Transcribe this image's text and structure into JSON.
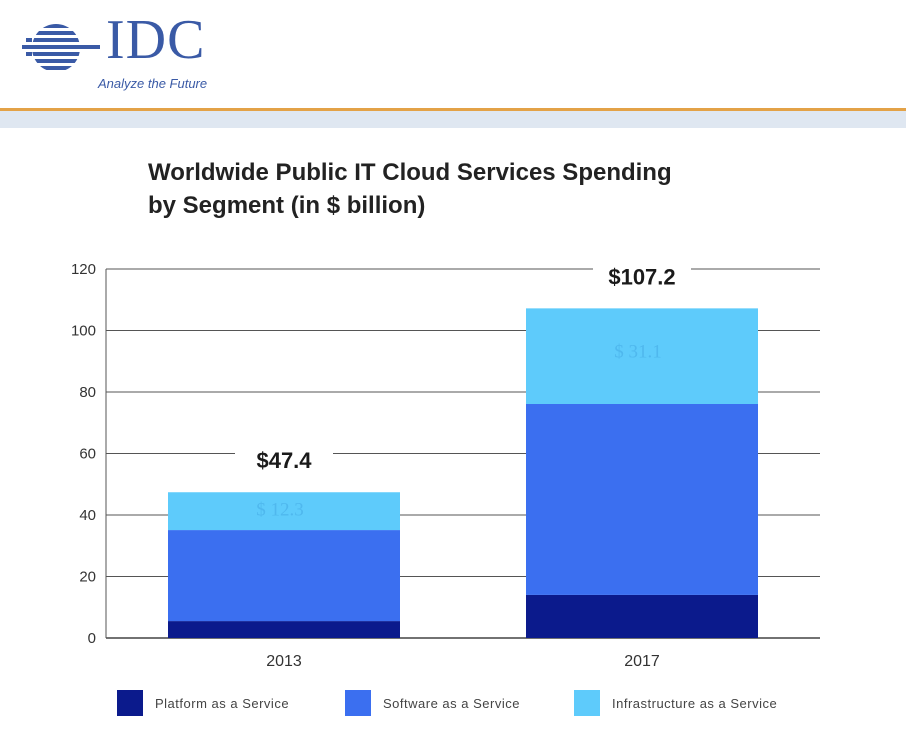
{
  "header": {
    "logo_text": "IDC",
    "tagline": "Analyze the Future",
    "colors": {
      "rule": "#e3a247",
      "band": "#dfe7f1",
      "logo": "#3a5aa6"
    }
  },
  "chart_data": {
    "type": "bar",
    "stacked": true,
    "title_line1": "Worldwide Public IT Cloud Services Spending",
    "title_line2": "by Segment (in $ billion)",
    "categories": [
      "2013",
      "2017"
    ],
    "series": [
      {
        "name": "Platform as a Service",
        "values": [
          5.5,
          14
        ],
        "color": "#0b1a8c"
      },
      {
        "name": "Software as a Service",
        "values": [
          29.6,
          62.1
        ],
        "color": "#3b6ff0"
      },
      {
        "name": "Infrastructure as a Service",
        "values": [
          12.3,
          31.1
        ],
        "color": "#5ecbfb"
      }
    ],
    "totals": [
      "$47.4",
      "$107.2"
    ],
    "segment_labels": [
      "$ 12.3",
      "$ 31.1"
    ],
    "yticks": [
      "0",
      "20",
      "40",
      "60",
      "80",
      "100",
      "120"
    ],
    "ylim": [
      0,
      120
    ],
    "grid": true,
    "legend_position": "bottom"
  }
}
